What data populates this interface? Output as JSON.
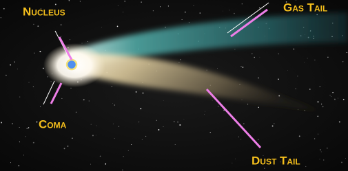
{
  "labels": {
    "nucleus": "Nucleus",
    "coma": "Coma",
    "gas_tail": "Gas Tail",
    "dust_tail": "Dust Tail"
  }
}
